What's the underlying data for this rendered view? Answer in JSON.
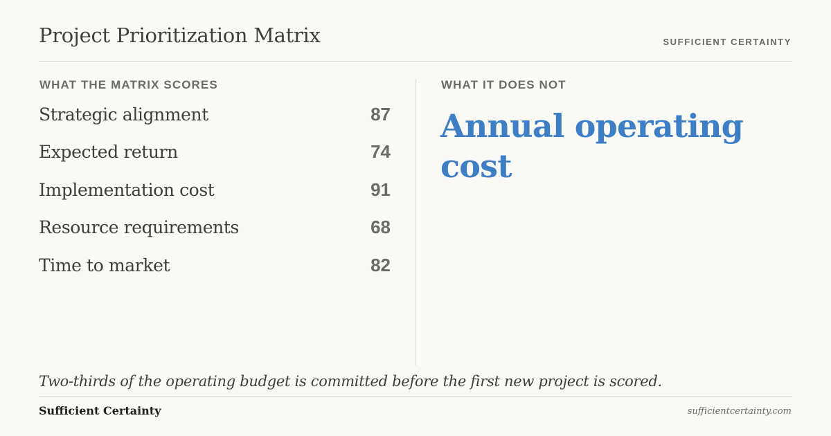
{
  "header": {
    "title": "Project Prioritization Matrix",
    "brand": "SUFFICIENT CERTAINTY"
  },
  "left": {
    "label": "WHAT THE MATRIX SCORES",
    "items": [
      {
        "name": "Strategic alignment",
        "value": "87"
      },
      {
        "name": "Expected return",
        "value": "74"
      },
      {
        "name": "Implementation cost",
        "value": "91"
      },
      {
        "name": "Resource requirements",
        "value": "68"
      },
      {
        "name": "Time to market",
        "value": "82"
      }
    ]
  },
  "right": {
    "label": "WHAT IT DOES NOT",
    "headline": "Annual operating cost"
  },
  "quote": "Two-thirds of the operating budget is committed before the first new project is scored.",
  "footer": {
    "brand": "Sufficient Certainty",
    "url": "sufficientcertainty.com"
  },
  "colors": {
    "background": "#f9f9f5",
    "accent": "#3d7ec4",
    "text": "#3d3d3a",
    "muted": "#6a6a66"
  }
}
